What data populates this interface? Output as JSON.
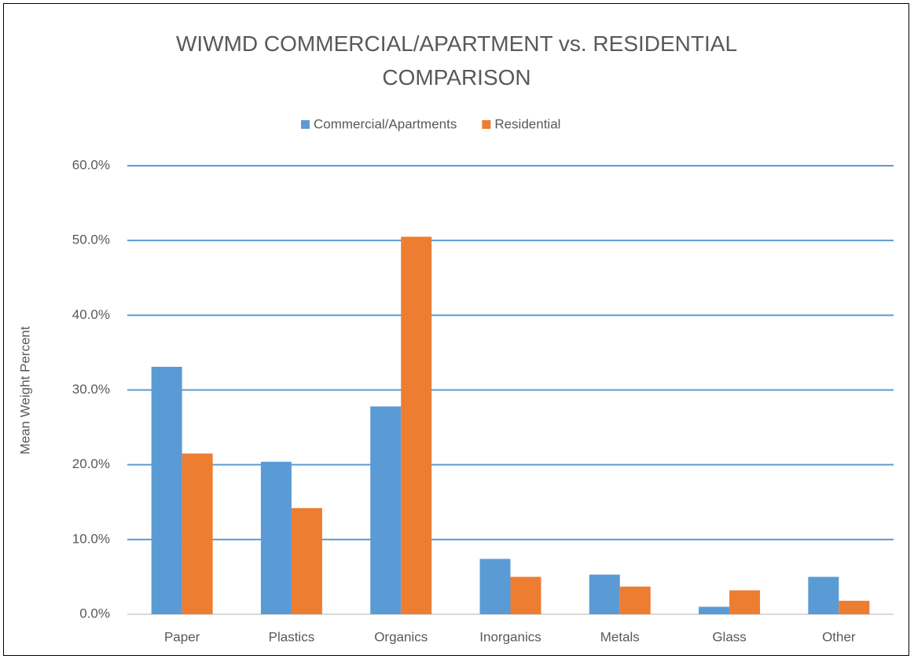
{
  "chart_data": {
    "type": "bar",
    "title": "WIWMD COMMERCIAL/APARTMENT vs. RESIDENTIAL COMPARISON",
    "y_label": "Mean Weight Percent",
    "categories": [
      "Paper",
      "Plastics",
      "Organics",
      "Inorganics",
      "Metals",
      "Glass",
      "Other"
    ],
    "series": [
      {
        "name": "Commercial/Apartments",
        "color": "#5b9bd5",
        "values": [
          33.1,
          20.4,
          27.8,
          7.4,
          5.3,
          1.0,
          5.0
        ]
      },
      {
        "name": "Residential",
        "color": "#ed7d31",
        "values": [
          21.5,
          14.2,
          50.5,
          5.0,
          3.7,
          3.2,
          1.8
        ]
      }
    ],
    "ylim": [
      0,
      60
    ],
    "yticks": [
      {
        "value": 0,
        "label": "0.0%"
      },
      {
        "value": 10,
        "label": "10.0%"
      },
      {
        "value": 20,
        "label": "20.0%"
      },
      {
        "value": 30,
        "label": "30.0%"
      },
      {
        "value": 40,
        "label": "40.0%"
      },
      {
        "value": 50,
        "label": "50.0%"
      },
      {
        "value": 60,
        "label": "60.0%"
      }
    ],
    "grid": true,
    "grid_color": "#5b9bd5",
    "legend": "top"
  }
}
